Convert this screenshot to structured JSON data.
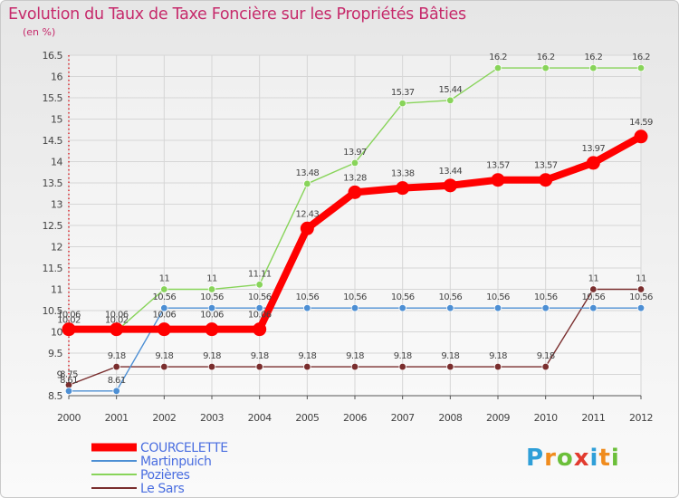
{
  "title": "Evolution du Taux de Taxe Foncière sur les Propriétés Bâties",
  "unit": "(en %)",
  "logo": "Proxiti",
  "chart_data": {
    "type": "line",
    "title": "Evolution du Taux de Taxe Foncière sur les Propriétés Bâties",
    "ylabel": "(en %)",
    "xlabel": "",
    "x": [
      "2000",
      "2001",
      "2002",
      "2003",
      "2004",
      "2005",
      "2006",
      "2007",
      "2008",
      "2009",
      "2010",
      "2011",
      "2012"
    ],
    "ylim": [
      8.5,
      16.5
    ],
    "yticks": [
      "8.5",
      "9",
      "9.5",
      "10",
      "10.5",
      "11",
      "11.5",
      "12",
      "12.5",
      "13",
      "13.5",
      "14",
      "14.5",
      "15",
      "15.5",
      "16",
      "16.5"
    ],
    "series": [
      {
        "name": "COURCELETTE",
        "color": "#ff0000",
        "values": [
          10.06,
          10.06,
          10.06,
          10.06,
          10.06,
          12.43,
          13.28,
          13.38,
          13.44,
          13.57,
          13.57,
          13.97,
          14.59
        ],
        "labels": [
          "10.06",
          "10.06",
          "10.06",
          "10.06",
          "10.06",
          "12.43",
          "13.28",
          "13.38",
          "13.44",
          "13.57",
          "13.57",
          "13.97",
          "14.59"
        ]
      },
      {
        "name": "Martinpuich",
        "color": "#4d8fd4",
        "values": [
          8.61,
          8.61,
          10.56,
          10.56,
          10.56,
          10.56,
          10.56,
          10.56,
          10.56,
          10.56,
          10.56,
          10.56,
          10.56
        ],
        "labels": [
          "8.61",
          "8.61",
          "10.56",
          "10.56",
          "10.56",
          "10.56",
          "10.56",
          "10.56",
          "10.56",
          "10.56",
          "10.56",
          "10.56",
          "10.56"
        ]
      },
      {
        "name": "Pozières",
        "color": "#88d45a",
        "values": [
          10.02,
          10.02,
          11,
          11,
          11.11,
          13.48,
          13.97,
          15.37,
          15.44,
          16.2,
          16.2,
          16.2,
          16.2
        ],
        "labels": [
          "10.02",
          "10.02",
          "11",
          "11",
          "11.11",
          "13.48",
          "13.97",
          "15.37",
          "15.44",
          "16.2",
          "16.2",
          "16.2",
          "16.2"
        ]
      },
      {
        "name": "Le Sars",
        "color": "#7a2e2e",
        "values": [
          8.75,
          9.18,
          9.18,
          9.18,
          9.18,
          9.18,
          9.18,
          9.18,
          9.18,
          9.18,
          9.18,
          11,
          11
        ],
        "labels": [
          "8.75",
          "9.18",
          "9.18",
          "9.18",
          "9.18",
          "9.18",
          "9.18",
          "9.18",
          "9.18",
          "9.18",
          "9.18",
          "11",
          "11"
        ]
      }
    ],
    "grid": true,
    "legend": "bottom-left"
  }
}
